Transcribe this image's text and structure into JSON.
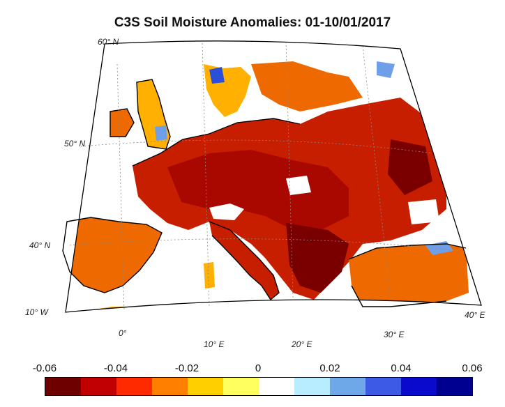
{
  "title": "C3S Soil Moisture Anomalies: 01-10/01/2017",
  "map": {
    "lat_labels": [
      "60° N",
      "50° N",
      "40° N"
    ],
    "lon_labels": [
      "10° W",
      "0°",
      "10° E",
      "20° E",
      "30° E",
      "40° E"
    ],
    "palette": {
      "very_dry": "#7a0000",
      "dry": "#c81e00",
      "moderate": "#ee6a00",
      "slight": "#ffb000",
      "near_zero": "#ffe400",
      "wet": "#6f9fe8",
      "very_wet": "#2a4fd8",
      "sea": "#ffffff"
    }
  },
  "colorbar": {
    "ticks": [
      "-0.06",
      "-0.04",
      "-0.02",
      "0",
      "0.02",
      "0.04",
      "0.06"
    ],
    "min": -0.06,
    "max": 0.06,
    "colors": [
      "#6e0000",
      "#c00000",
      "#ff2a00",
      "#ff8000",
      "#ffd000",
      "#ffff60",
      "#ffffff",
      "#b8ecff",
      "#6fa8e8",
      "#3c5ae6",
      "#0a0acc",
      "#000090"
    ]
  }
}
